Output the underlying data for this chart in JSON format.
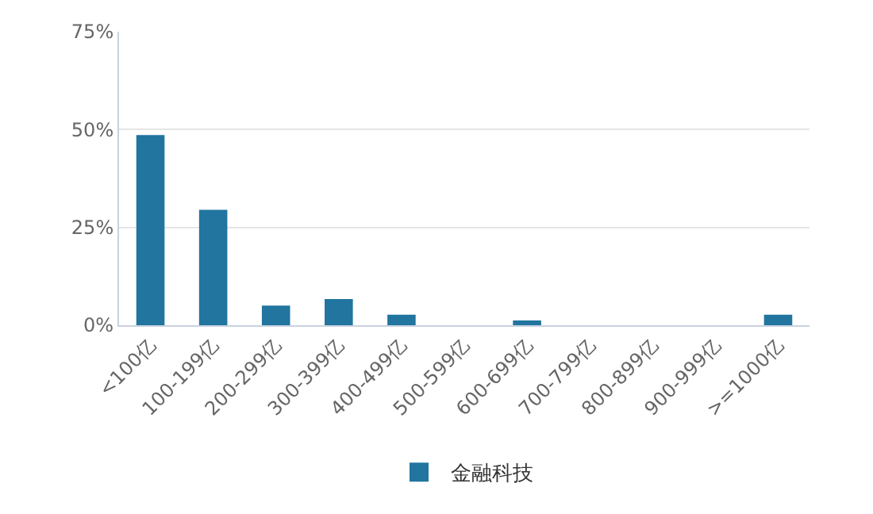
{
  "chart_data": {
    "type": "bar",
    "categories": [
      "<100亿",
      "100-199亿",
      "200-299亿",
      "300-399亿",
      "400-499亿",
      "500-599亿",
      "600-699亿",
      "700-799亿",
      "800-899亿",
      "900-999亿",
      ">=1000亿"
    ],
    "series": [
      {
        "name": "金融科技",
        "color": "#21759f",
        "values": [
          48.6,
          29.5,
          5.0,
          6.7,
          2.7,
          0,
          1.2,
          0,
          0,
          0,
          2.7
        ]
      }
    ],
    "ylim": [
      0,
      75
    ],
    "yticks": [
      {
        "value": 0,
        "label": "0%"
      },
      {
        "value": 25,
        "label": "25%"
      },
      {
        "value": 50,
        "label": "50%"
      },
      {
        "value": 75,
        "label": "75%"
      }
    ],
    "grid": "y",
    "legend": "bottom"
  }
}
